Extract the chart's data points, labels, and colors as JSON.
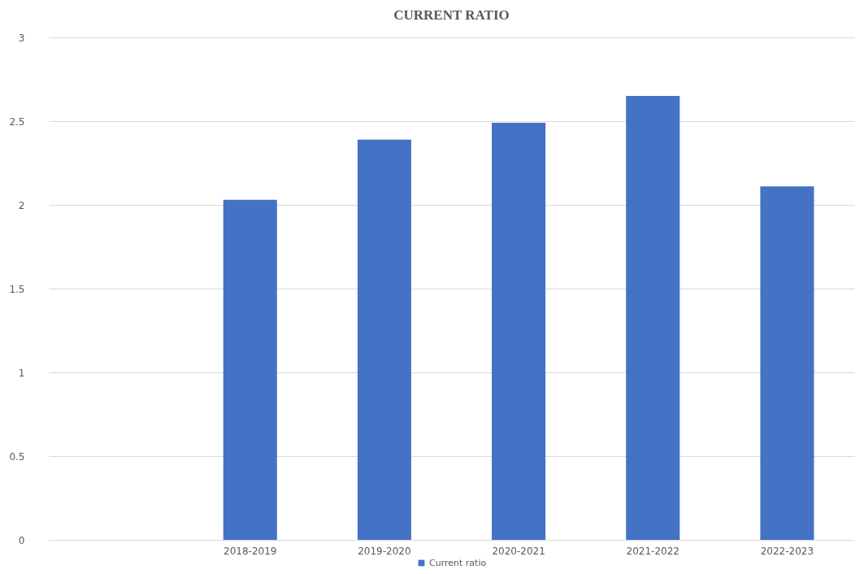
{
  "chart_data": {
    "type": "bar",
    "title": "CURRENT RATIO",
    "categories": [
      null,
      "2018-2019",
      "2019-2020",
      "2020-2021",
      "2021-2022",
      "2022-2023"
    ],
    "series": [
      {
        "name": "Current ratio",
        "color": "#4472c4",
        "values": [
          null,
          2.03,
          2.39,
          2.49,
          2.65,
          2.11
        ]
      }
    ],
    "ylim": [
      0,
      3
    ],
    "yticks": [
      0,
      0.5,
      1,
      1.5,
      2,
      2.5,
      3
    ],
    "grid": "y",
    "legend": "bottom"
  }
}
